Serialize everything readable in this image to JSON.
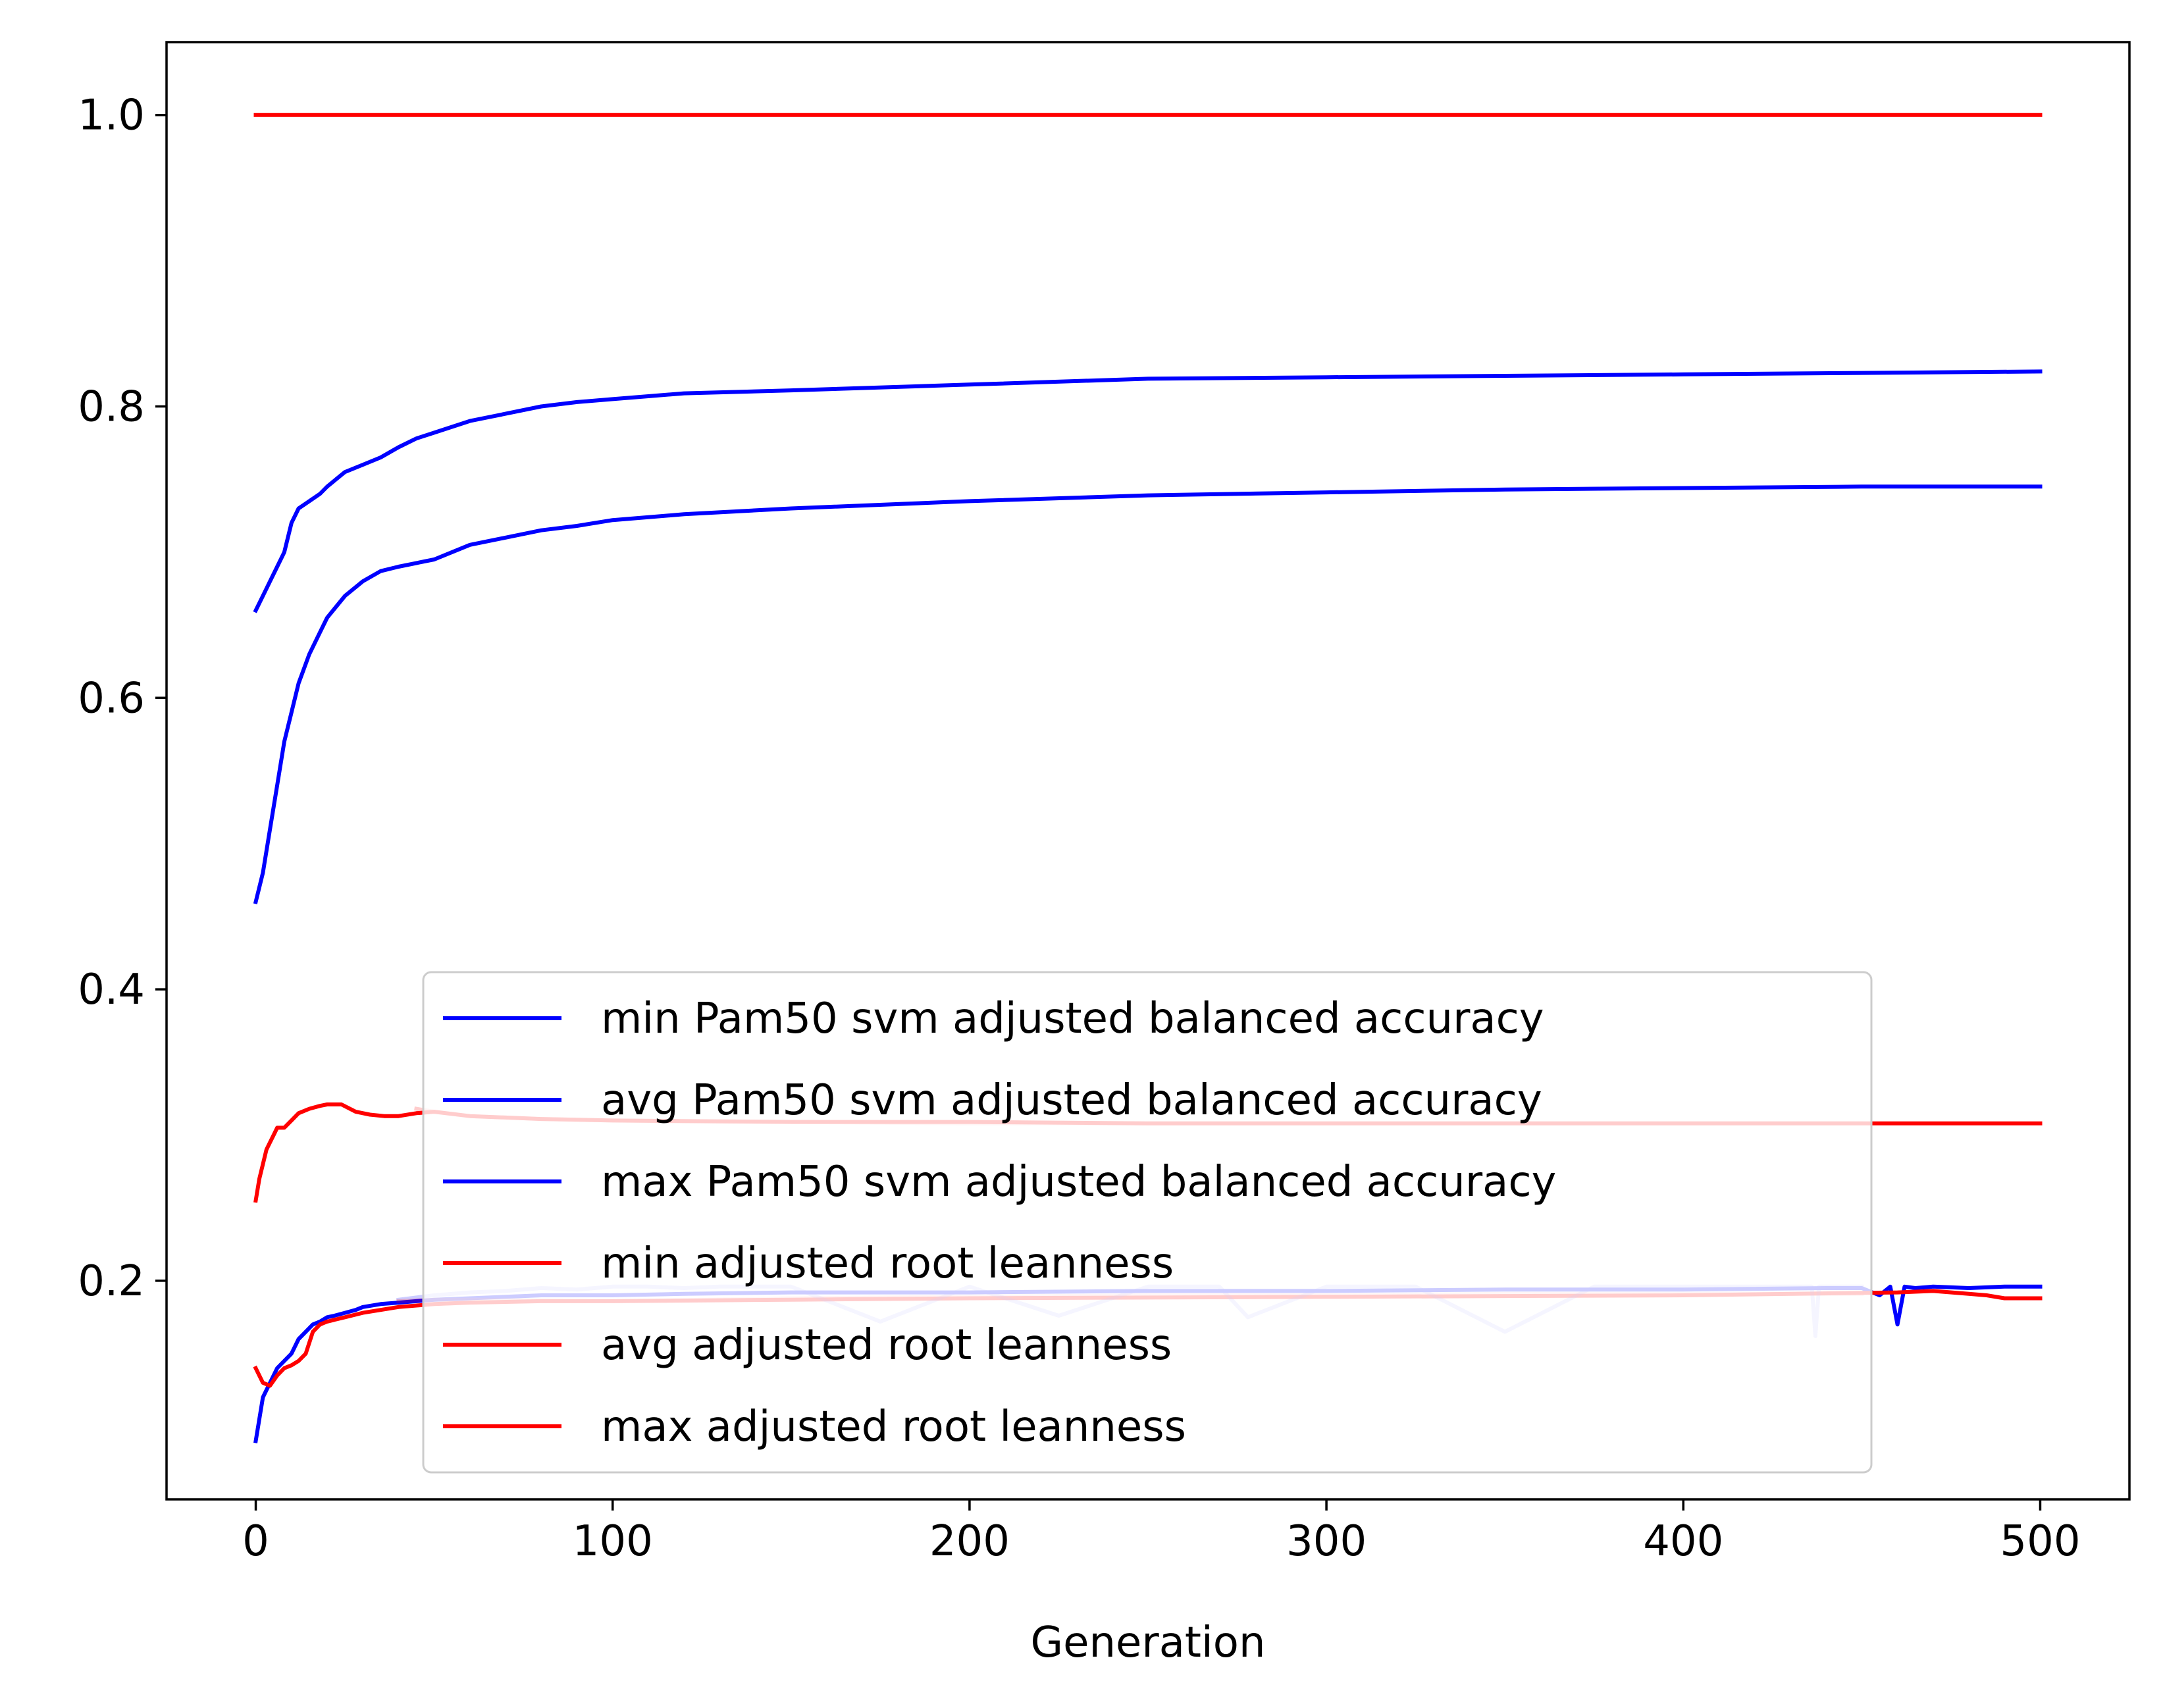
{
  "chart_data": {
    "type": "line",
    "title": "",
    "xlabel": "Generation",
    "ylabel": "",
    "xlim": [
      -25,
      525
    ],
    "ylim": [
      0.05,
      1.05
    ],
    "xticks": [
      0,
      100,
      200,
      300,
      400,
      500
    ],
    "xtick_labels": [
      "0",
      "100",
      "200",
      "300",
      "400",
      "500"
    ],
    "yticks": [
      0.2,
      0.4,
      0.6,
      0.8,
      1.0
    ],
    "ytick_labels": [
      "0.2",
      "0.4",
      "0.6",
      "0.8",
      "1.0"
    ],
    "grid": false,
    "legend_position": "lower-center",
    "series": [
      {
        "name": "min Pam50 svm adjusted balanced accuracy",
        "color": "#0000ff",
        "opacity": 1.0,
        "x": [
          0,
          2,
          4,
          6,
          8,
          10,
          12,
          14,
          16,
          18,
          20,
          22,
          25,
          28,
          30,
          35,
          40,
          45,
          50,
          60,
          70,
          80,
          100,
          120,
          150,
          200,
          250,
          300,
          350,
          400,
          440,
          450,
          455,
          458,
          460,
          462,
          465,
          470,
          480,
          490,
          500
        ],
        "y": [
          0.09,
          0.12,
          0.13,
          0.14,
          0.145,
          0.15,
          0.16,
          0.165,
          0.17,
          0.172,
          0.175,
          0.176,
          0.178,
          0.18,
          0.182,
          0.184,
          0.185,
          0.186,
          0.187,
          0.188,
          0.189,
          0.19,
          0.19,
          0.191,
          0.192,
          0.192,
          0.193,
          0.193,
          0.194,
          0.194,
          0.195,
          0.195,
          0.19,
          0.196,
          0.17,
          0.196,
          0.195,
          0.196,
          0.195,
          0.196,
          0.196
        ]
      },
      {
        "name": "avg Pam50 svm adjusted balanced accuracy",
        "color": "#0000ff",
        "opacity": 1.0,
        "x": [
          0,
          2,
          4,
          6,
          8,
          10,
          12,
          15,
          18,
          20,
          25,
          30,
          35,
          40,
          50,
          60,
          70,
          80,
          90,
          100,
          120,
          150,
          200,
          250,
          300,
          350,
          400,
          450,
          500
        ],
        "y": [
          0.46,
          0.48,
          0.51,
          0.54,
          0.57,
          0.59,
          0.61,
          0.63,
          0.645,
          0.655,
          0.67,
          0.68,
          0.687,
          0.69,
          0.695,
          0.705,
          0.71,
          0.715,
          0.718,
          0.722,
          0.726,
          0.73,
          0.735,
          0.739,
          0.741,
          0.743,
          0.744,
          0.745,
          0.745
        ]
      },
      {
        "name": "max Pam50 svm adjusted balanced accuracy",
        "color": "#0000ff",
        "opacity": 1.0,
        "x": [
          0,
          2,
          4,
          6,
          8,
          10,
          12,
          15,
          18,
          20,
          25,
          30,
          35,
          40,
          45,
          50,
          60,
          70,
          80,
          90,
          100,
          110,
          120,
          150,
          200,
          250,
          300,
          350,
          400,
          450,
          500
        ],
        "y": [
          0.66,
          0.67,
          0.68,
          0.69,
          0.7,
          0.72,
          0.73,
          0.735,
          0.74,
          0.745,
          0.755,
          0.76,
          0.765,
          0.772,
          0.778,
          0.782,
          0.79,
          0.795,
          0.8,
          0.803,
          0.805,
          0.807,
          0.809,
          0.811,
          0.815,
          0.819,
          0.82,
          0.821,
          0.822,
          0.823,
          0.824
        ]
      },
      {
        "name": "min adjusted root leanness",
        "color": "#ff0000",
        "opacity": 1.0,
        "x": [
          0,
          2,
          4,
          6,
          8,
          10,
          12,
          14,
          16,
          18,
          20,
          25,
          30,
          40,
          50,
          60,
          80,
          100,
          150,
          200,
          300,
          400,
          460,
          470,
          480,
          485,
          490,
          500
        ],
        "y": [
          0.14,
          0.13,
          0.128,
          0.135,
          0.14,
          0.142,
          0.145,
          0.15,
          0.165,
          0.17,
          0.172,
          0.175,
          0.178,
          0.182,
          0.184,
          0.185,
          0.186,
          0.186,
          0.187,
          0.188,
          0.189,
          0.19,
          0.192,
          0.193,
          0.191,
          0.19,
          0.188,
          0.188
        ]
      },
      {
        "name": "avg adjusted root leanness",
        "color": "#ff0000",
        "opacity": 1.0,
        "x": [
          0,
          1,
          2,
          3,
          4,
          5,
          6,
          8,
          10,
          12,
          15,
          18,
          20,
          24,
          28,
          32,
          36,
          40,
          45,
          50,
          60,
          80,
          100,
          150,
          200,
          250,
          300,
          400,
          500
        ],
        "y": [
          0.255,
          0.27,
          0.28,
          0.29,
          0.295,
          0.3,
          0.305,
          0.305,
          0.31,
          0.315,
          0.318,
          0.32,
          0.321,
          0.321,
          0.316,
          0.314,
          0.313,
          0.313,
          0.315,
          0.316,
          0.313,
          0.311,
          0.31,
          0.309,
          0.309,
          0.308,
          0.308,
          0.308,
          0.308
        ]
      },
      {
        "name": "max adjusted root leanness",
        "color": "#ff0000",
        "opacity": 1.0,
        "x": [
          0,
          500
        ],
        "y": [
          1.0,
          1.0
        ]
      }
    ],
    "overlay_series": [
      {
        "name": "faint-blue-overlay",
        "color": "#0000ff",
        "opacity": 0.2,
        "x": [
          40,
          50,
          60,
          70,
          80,
          90,
          100,
          110,
          120,
          130,
          150,
          175,
          200,
          225,
          250,
          270,
          278,
          300,
          325,
          350,
          375,
          400,
          425,
          436,
          437,
          438,
          450
        ],
        "y": [
          0.187,
          0.19,
          0.192,
          0.193,
          0.195,
          0.194,
          0.196,
          0.196,
          0.195,
          0.196,
          0.196,
          0.172,
          0.196,
          0.176,
          0.196,
          0.196,
          0.175,
          0.196,
          0.196,
          0.165,
          0.196,
          0.196,
          0.196,
          0.196,
          0.162,
          0.196,
          0.196
        ]
      },
      {
        "name": "faint-red-overlay",
        "color": "#ff0000",
        "opacity": 0.2,
        "x": [
          40,
          50,
          60,
          100,
          150,
          200,
          250,
          300,
          350,
          400,
          450
        ],
        "y": [
          0.186,
          0.187,
          0.187,
          0.186,
          0.188,
          0.189,
          0.19,
          0.19,
          0.191,
          0.191,
          0.191
        ]
      },
      {
        "name": "faint-red-avg-overlay",
        "color": "#ff0000",
        "opacity": 0.2,
        "x": [
          45,
          50,
          60,
          80,
          100,
          150,
          200,
          250,
          300,
          350,
          400,
          450
        ],
        "y": [
          0.318,
          0.316,
          0.313,
          0.311,
          0.31,
          0.309,
          0.308,
          0.308,
          0.308,
          0.308,
          0.308,
          0.308
        ]
      }
    ]
  }
}
